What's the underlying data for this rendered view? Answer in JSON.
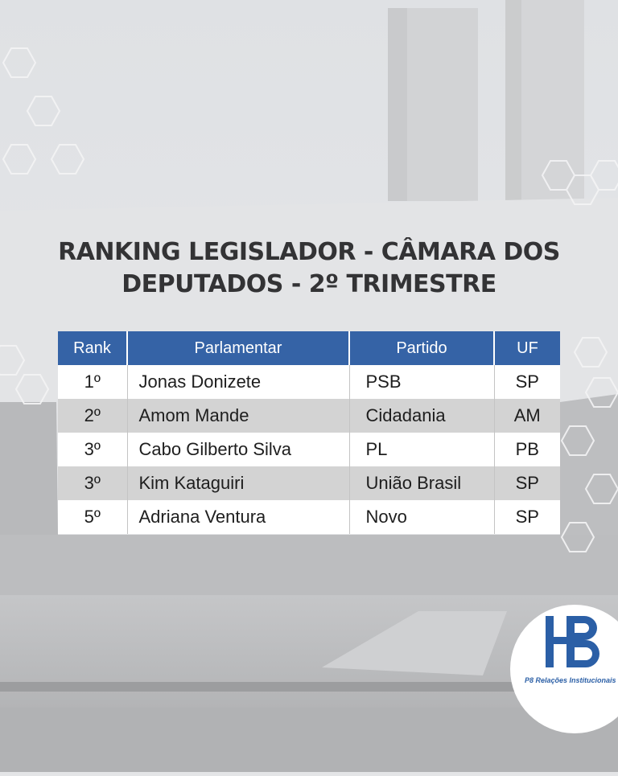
{
  "title": {
    "line1": "RANKING LEGISLADOR - CÂMARA DOS",
    "line2": "DEPUTADOS - 2º TRIMESTRE"
  },
  "table": {
    "headers": [
      "Rank",
      "Parlamentar",
      "Partido",
      "UF"
    ],
    "rows": [
      [
        "1º",
        "Jonas Donizete",
        "PSB",
        "SP"
      ],
      [
        "2º",
        "Amom Mande",
        "Cidadania",
        "AM"
      ],
      [
        "3º",
        "Cabo Gilberto Silva",
        "PL",
        "PB"
      ],
      [
        "3º",
        "Kim Kataguiri",
        "União Brasil",
        "SP"
      ],
      [
        "5º",
        "Adriana Ventura",
        "Novo",
        "SP"
      ]
    ]
  },
  "logo": {
    "caption": "P8 Relações Institucionais",
    "color": "#2b5fa6"
  },
  "colors": {
    "header_bg": "#3563a6",
    "row_alt_bg": "#d3d3d3",
    "title_text": "#333335"
  }
}
